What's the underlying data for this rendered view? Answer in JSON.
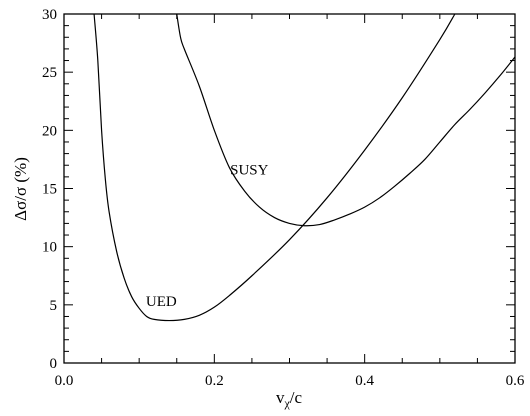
{
  "chart_data": {
    "type": "line",
    "title": "",
    "xlabel_main": "v",
    "xlabel_sub": "χ",
    "xlabel_tail": "/c",
    "ylabel": "Δσ/σ (%)",
    "xlim": [
      0.0,
      0.6
    ],
    "ylim": [
      0,
      30
    ],
    "xticks": [
      0.0,
      0.2,
      0.4,
      0.6
    ],
    "xtick_labels": [
      "0.0",
      "0.2",
      "0.4",
      "0.6"
    ],
    "yticks": [
      0,
      5,
      10,
      15,
      20,
      25,
      30
    ],
    "ytick_labels": [
      "0",
      "5",
      "10",
      "15",
      "20",
      "25",
      "30"
    ],
    "grid": false,
    "legend": "none",
    "series": [
      {
        "name": "UED",
        "color": "#000000",
        "x": [
          0.04,
          0.045,
          0.05,
          0.055,
          0.06,
          0.07,
          0.08,
          0.09,
          0.1,
          0.11,
          0.12,
          0.14,
          0.16,
          0.18,
          0.2,
          0.22,
          0.25,
          0.3,
          0.35,
          0.4,
          0.45,
          0.5,
          0.52
        ],
        "y": [
          30.0,
          26.0,
          20.0,
          15.8,
          13.0,
          9.6,
          7.3,
          5.7,
          4.7,
          4.0,
          3.75,
          3.65,
          3.75,
          4.1,
          4.8,
          5.8,
          7.5,
          10.6,
          14.2,
          18.3,
          22.8,
          27.8,
          30.0
        ]
      },
      {
        "name": "SUSY",
        "color": "#000000",
        "x": [
          0.15,
          0.155,
          0.16,
          0.18,
          0.2,
          0.22,
          0.24,
          0.26,
          0.28,
          0.3,
          0.32,
          0.34,
          0.36,
          0.38,
          0.4,
          0.42,
          0.44,
          0.46,
          0.48,
          0.5,
          0.52,
          0.54,
          0.56,
          0.58,
          0.6
        ],
        "y": [
          30.0,
          28.0,
          27.0,
          23.8,
          20.0,
          16.8,
          14.8,
          13.4,
          12.5,
          12.0,
          11.8,
          11.9,
          12.3,
          12.8,
          13.4,
          14.2,
          15.2,
          16.3,
          17.5,
          19.0,
          20.5,
          21.8,
          23.2,
          24.7,
          26.3
        ]
      }
    ],
    "annotations": [
      {
        "text": "SUSY",
        "x": 0.221,
        "y": 16.2
      },
      {
        "text": "UED",
        "x": 0.109,
        "y": 4.9
      }
    ]
  }
}
